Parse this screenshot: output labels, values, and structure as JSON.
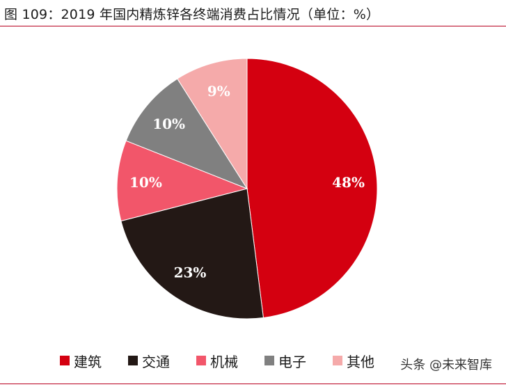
{
  "title": "图 109：2019 年国内精炼锌各终端消费占比情况（单位：%）",
  "watermark": "头条 @未来智库",
  "chart_data": {
    "type": "pie",
    "start_angle_deg": 0,
    "direction": "clockwise",
    "legend_position": "bottom",
    "slices": [
      {
        "label": "建筑",
        "value": 48,
        "display": "48%",
        "color": "#d40010"
      },
      {
        "label": "交通",
        "value": 23,
        "display": "23%",
        "color": "#231815"
      },
      {
        "label": "机械",
        "value": 10,
        "display": "10%",
        "color": "#f2566a"
      },
      {
        "label": "电子",
        "value": 10,
        "display": "10%",
        "color": "#808080"
      },
      {
        "label": "其他",
        "value": 9,
        "display": "9%",
        "color": "#f5aaaa"
      }
    ]
  }
}
